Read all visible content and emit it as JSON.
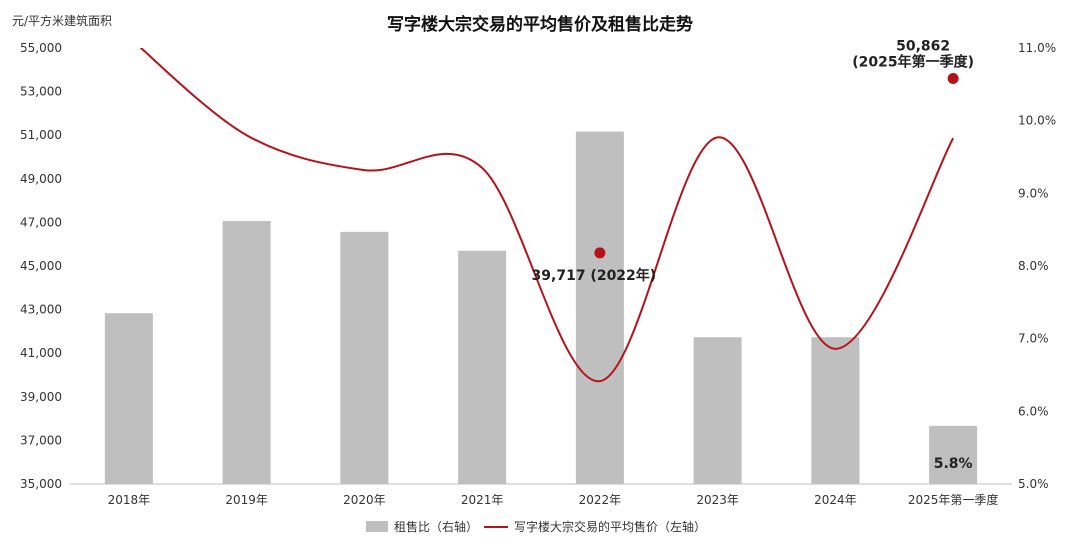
{
  "chart_data": {
    "type": "bar",
    "title": "写字楼大宗交易的平均售价及租售比走势",
    "y_left_label": "元/平方米建筑面积",
    "categories": [
      "2018年",
      "2019年",
      "2020年",
      "2021年",
      "2022年",
      "2023年",
      "2024年",
      "2025年第一季度"
    ],
    "series": [
      {
        "name": "租售比（右轴）",
        "type": "bar",
        "axis": "right",
        "color": "#bfbfbf",
        "values": [
          7.35,
          8.62,
          8.47,
          8.21,
          9.85,
          7.02,
          7.02,
          5.8
        ]
      },
      {
        "name": "写字楼大宗交易的平均售价（左轴）",
        "type": "line",
        "axis": "left",
        "color": "#b5121b",
        "smooth": true,
        "values": [
          55500,
          51000,
          49400,
          49500,
          39717,
          50900,
          41200,
          50862
        ]
      }
    ],
    "y_left": {
      "min": 35000,
      "max": 55000,
      "ticks": [
        "35,000",
        "37,000",
        "39,000",
        "41,000",
        "43,000",
        "45,000",
        "47,000",
        "49,000",
        "51,000",
        "53,000",
        "55,000"
      ]
    },
    "y_right": {
      "min": 5.0,
      "max": 11.0,
      "ticks": [
        "5.0%",
        "6.0%",
        "7.0%",
        "8.0%",
        "9.0%",
        "10.0%",
        "11.0%"
      ]
    },
    "annotations": [
      {
        "category": "2022年",
        "value": 45600,
        "line1": "39,717 (2022年)",
        "line2": ""
      },
      {
        "category": "2025年第一季度",
        "value": 53600,
        "line1": "50,862",
        "line2": "(2025年第一季度)"
      }
    ],
    "bar_value_labels": [
      {
        "category": "2025年第一季度",
        "text": "5.8%"
      }
    ],
    "legend_position": "bottom-center",
    "grid": false
  }
}
